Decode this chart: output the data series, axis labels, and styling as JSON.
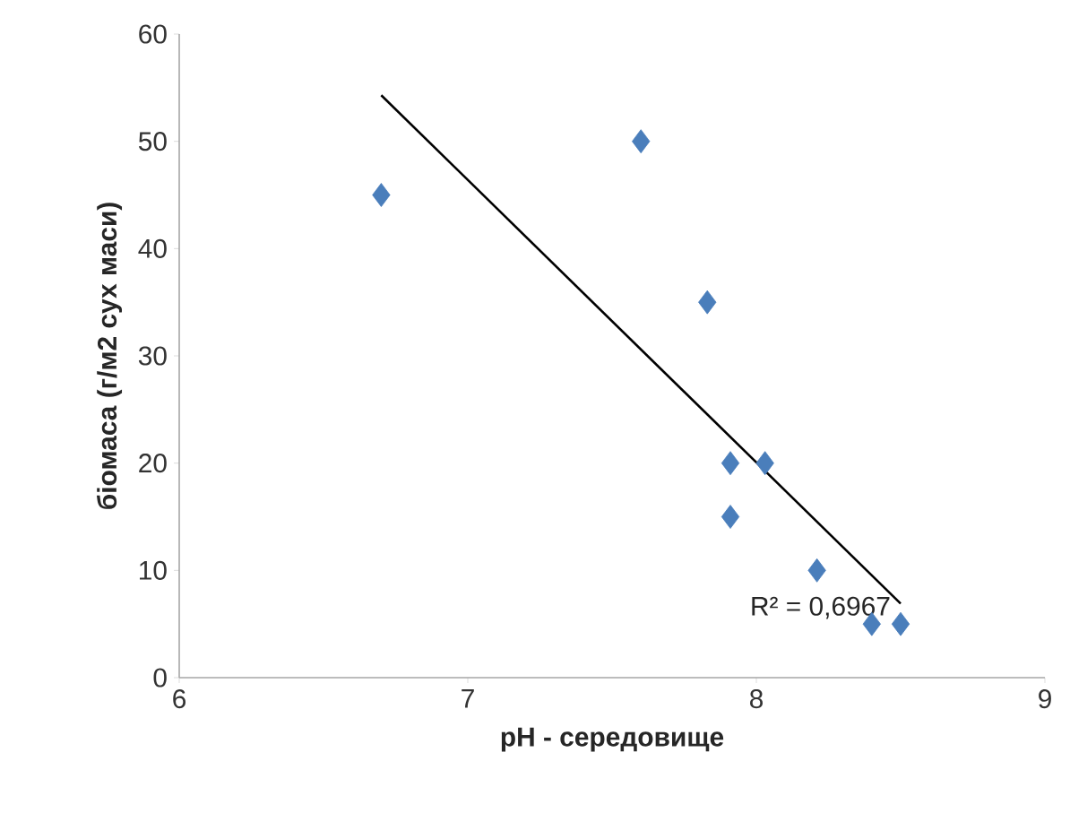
{
  "chart_data": {
    "type": "scatter",
    "xlabel": "pH - середовище",
    "ylabel": "біомаса (г/м2 сух маси)",
    "xlim": [
      6,
      9
    ],
    "xticks": [
      6,
      7,
      8,
      9
    ],
    "ylim": [
      0,
      60
    ],
    "yticks": [
      0,
      10,
      20,
      30,
      40,
      50,
      60
    ],
    "grid": false,
    "series": [
      {
        "marker": "diamond",
        "color": "#4a7ebb",
        "x": [
          6.7,
          7.6,
          7.83,
          7.91,
          8.03,
          7.91,
          8.21,
          8.4,
          8.5
        ],
        "values": [
          45,
          50,
          35,
          20,
          20,
          15,
          10,
          5,
          5
        ]
      },
      {
        "type": "line",
        "marker": "none",
        "color": "#000000",
        "x": [
          6.7,
          8.5
        ],
        "values": [
          54.3,
          6.9
        ]
      }
    ],
    "annotations": [
      {
        "text": "R² = 0,6967",
        "x": 8.5,
        "y": 6.9
      }
    ]
  }
}
